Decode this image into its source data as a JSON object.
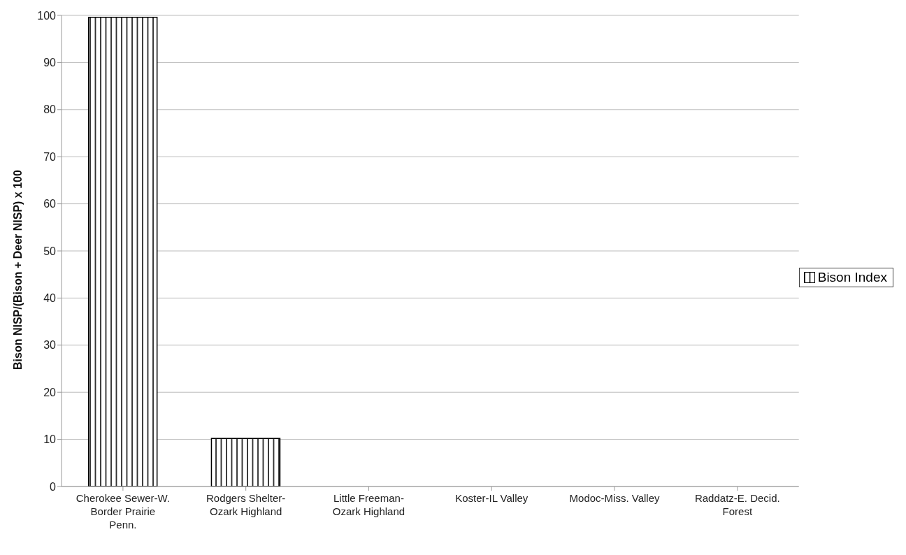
{
  "chart_data": {
    "type": "bar",
    "ylabel": "Bison NISP/(Bison + Deer NISP) x 100",
    "categories": [
      "Cherokee Sewer-W. Border Prairie Penn.",
      "Rodgers Shelter-Ozark Highland",
      "Little Freeman-Ozark Highland",
      "Koster-IL Valley",
      "Modoc-Miss. Valley",
      "Raddatz-E. Decid. Forest"
    ],
    "series": [
      {
        "name": "Bison  Index",
        "color": "#000000",
        "values": [
          99.6,
          10.2,
          0,
          0,
          0,
          0
        ]
      }
    ],
    "ylim": [
      0,
      100
    ],
    "yticks": [
      0,
      10,
      20,
      30,
      40,
      50,
      60,
      70,
      80,
      90,
      100
    ],
    "grid": "y",
    "legend": "right"
  }
}
